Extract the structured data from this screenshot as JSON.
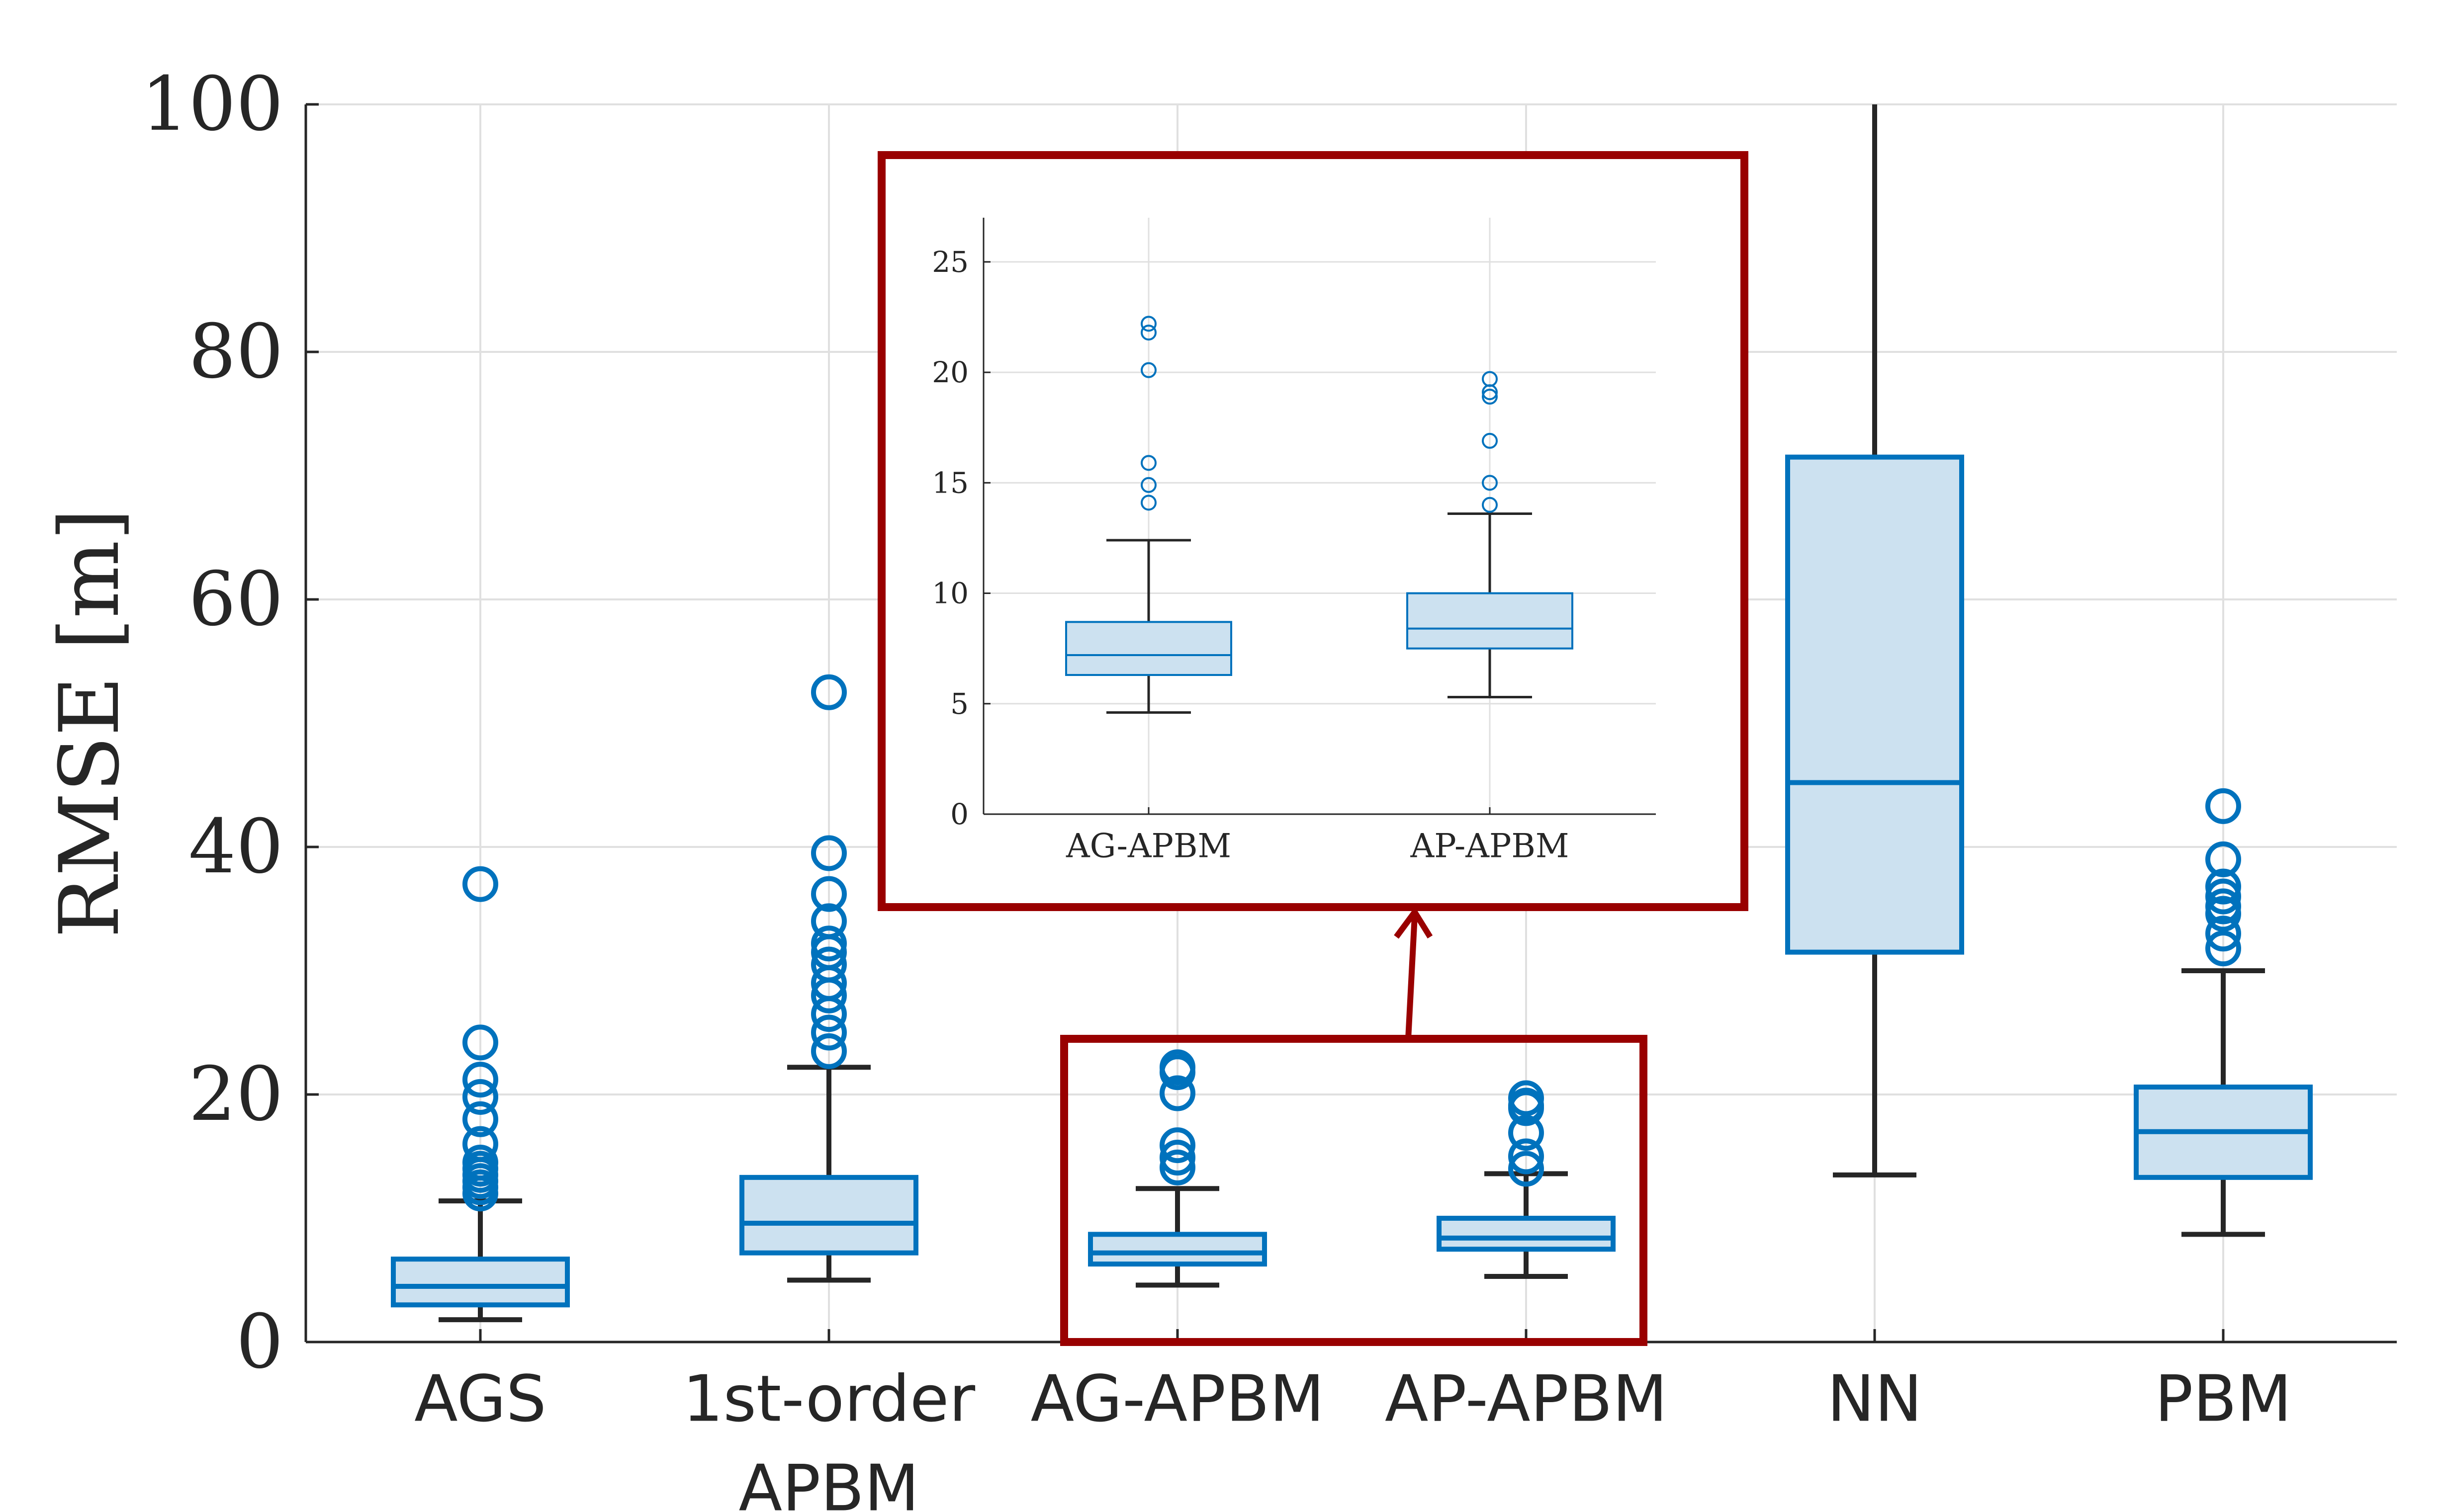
{
  "chart_data": [
    {
      "type": "box",
      "ylabel": "RMSE [m]",
      "xlabel": "",
      "title": "",
      "ylim": [
        0,
        100
      ],
      "yticks": [
        0,
        20,
        40,
        60,
        80,
        100
      ],
      "grid": true,
      "categories": [
        {
          "lines": [
            "AGS"
          ]
        },
        {
          "lines": [
            "1st-order",
            "APBM"
          ]
        },
        {
          "lines": [
            "AG-APBM"
          ]
        },
        {
          "lines": [
            "AP-APBM"
          ]
        },
        {
          "lines": [
            "NN"
          ]
        },
        {
          "lines": [
            "PBM"
          ]
        }
      ],
      "boxes": [
        {
          "q1": 3.0,
          "median": 4.5,
          "q3": 6.7,
          "whisker_low": 1.8,
          "whisker_high": 11.4,
          "outliers": [
            12.0,
            12.5,
            13.0,
            13.5,
            14.0,
            14.5,
            16.0,
            18.0,
            19.8,
            21.2,
            24.2,
            37.0
          ]
        },
        {
          "q1": 7.2,
          "median": 9.6,
          "q3": 13.3,
          "whisker_low": 5.0,
          "whisker_high": 22.2,
          "outliers": [
            23.5,
            25.0,
            26.5,
            28.0,
            29.0,
            30.5,
            31.5,
            32.2,
            34.0,
            36.2,
            39.5,
            52.5
          ]
        },
        {
          "q1": 6.3,
          "median": 7.2,
          "q3": 8.7,
          "whisker_low": 4.6,
          "whisker_high": 12.4,
          "outliers": [
            14.1,
            14.9,
            15.9,
            20.1,
            21.8,
            22.2
          ]
        },
        {
          "q1": 7.5,
          "median": 8.4,
          "q3": 10.0,
          "whisker_low": 5.3,
          "whisker_high": 13.6,
          "outliers": [
            14.0,
            15.0,
            16.9,
            18.9,
            19.1,
            19.7
          ]
        },
        {
          "q1": 31.5,
          "median": 45.2,
          "q3": 71.5,
          "whisker_low": 13.5,
          "whisker_high": 100,
          "outliers": []
        },
        {
          "q1": 13.3,
          "median": 17.0,
          "q3": 20.6,
          "whisker_low": 8.7,
          "whisker_high": 30.0,
          "outliers": [
            31.8,
            33.0,
            34.6,
            35.2,
            36.0,
            36.8,
            39.0,
            43.3
          ]
        }
      ],
      "colors": {
        "box_edge": "#0072BD",
        "box_fill": "#CCE1F0",
        "whisker": "#262626",
        "outlier": "#0072BD",
        "grid": "#E0E0E0",
        "axis": "#262626"
      }
    },
    {
      "type": "box",
      "role": "inset",
      "ylim": [
        0,
        27
      ],
      "yticks": [
        0,
        5,
        10,
        15,
        20,
        25
      ],
      "grid": true,
      "categories": [
        {
          "lines": [
            "AG-APBM"
          ]
        },
        {
          "lines": [
            "AP-APBM"
          ]
        }
      ],
      "boxes": [
        {
          "q1": 6.3,
          "median": 7.2,
          "q3": 8.7,
          "whisker_low": 4.6,
          "whisker_high": 12.4,
          "outliers": [
            14.1,
            14.9,
            15.9,
            20.1,
            21.8,
            22.2
          ]
        },
        {
          "q1": 7.5,
          "median": 8.4,
          "q3": 10.0,
          "whisker_low": 5.3,
          "whisker_high": 13.6,
          "outliers": [
            14.0,
            15.0,
            16.9,
            18.9,
            19.1,
            19.7
          ]
        }
      ],
      "colors": {
        "box_edge": "#0072BD",
        "box_fill": "#CCE1F0",
        "whisker": "#262626",
        "outlier": "#0072BD",
        "grid": "#E0E0E0",
        "axis": "#262626"
      }
    }
  ],
  "callout": {
    "color": "#990000"
  }
}
